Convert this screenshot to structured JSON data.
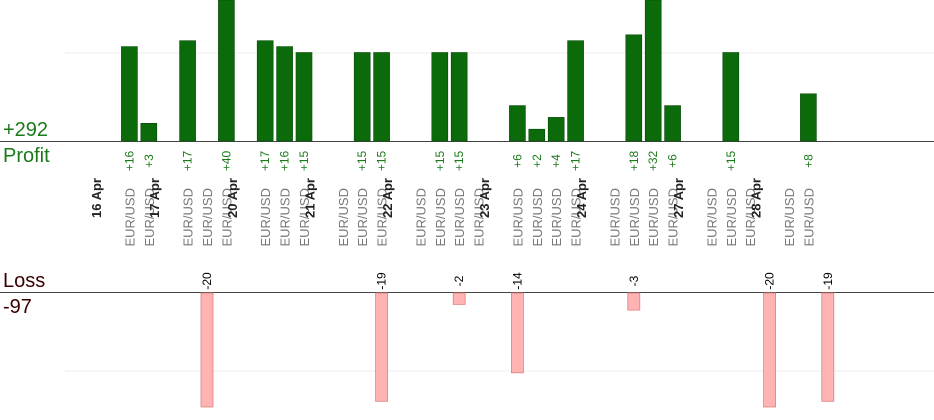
{
  "summary": {
    "profit_total": "+292",
    "profit_label": "Profit",
    "loss_label": "Loss",
    "loss_total": "-97"
  },
  "chart_data": [
    {
      "type": "bar",
      "series_label": "Profit",
      "bars": [
        {
          "day": 0,
          "pair": "EUR/USD",
          "value": 16,
          "label": "+16"
        },
        {
          "day": 0,
          "pair": "EUR/USD",
          "value": 3,
          "label": "+3"
        },
        {
          "day": 1,
          "pair": "EUR/USD",
          "value": 17,
          "label": "+17"
        },
        {
          "day": 1,
          "pair": "EUR/USD",
          "value": 0,
          "label": ""
        },
        {
          "day": 1,
          "pair": "EUR/USD",
          "value": 40,
          "label": "+40"
        },
        {
          "day": 2,
          "pair": "EUR/USD",
          "value": 17,
          "label": "+17"
        },
        {
          "day": 2,
          "pair": "EUR/USD",
          "value": 16,
          "label": "+16"
        },
        {
          "day": 2,
          "pair": "EUR/USD",
          "value": 15,
          "label": "+15"
        },
        {
          "day": 3,
          "pair": "EUR/USD",
          "value": 0,
          "label": ""
        },
        {
          "day": 3,
          "pair": "EUR/USD",
          "value": 15,
          "label": "+15"
        },
        {
          "day": 3,
          "pair": "EUR/USD",
          "value": 15,
          "label": "+15"
        },
        {
          "day": 4,
          "pair": "EUR/USD",
          "value": 0,
          "label": ""
        },
        {
          "day": 4,
          "pair": "EUR/USD",
          "value": 15,
          "label": "+15"
        },
        {
          "day": 4,
          "pair": "EUR/USD",
          "value": 15,
          "label": "+15"
        },
        {
          "day": 4,
          "pair": "EUR/USD",
          "value": 0,
          "label": ""
        },
        {
          "day": 5,
          "pair": "EUR/USD",
          "value": 6,
          "label": "+6"
        },
        {
          "day": 5,
          "pair": "EUR/USD",
          "value": 2,
          "label": "+2"
        },
        {
          "day": 5,
          "pair": "EUR/USD",
          "value": 4,
          "label": "+4"
        },
        {
          "day": 5,
          "pair": "EUR/USD",
          "value": 17,
          "label": "+17"
        },
        {
          "day": 6,
          "pair": "EUR/USD",
          "value": 0,
          "label": ""
        },
        {
          "day": 6,
          "pair": "EUR/USD",
          "value": 18,
          "label": "+18"
        },
        {
          "day": 6,
          "pair": "EUR/USD",
          "value": 32,
          "label": "+32"
        },
        {
          "day": 6,
          "pair": "EUR/USD",
          "value": 6,
          "label": "+6"
        },
        {
          "day": 7,
          "pair": "EUR/USD",
          "value": 0,
          "label": ""
        },
        {
          "day": 7,
          "pair": "EUR/USD",
          "value": 15,
          "label": "+15"
        },
        {
          "day": 7,
          "pair": "EUR/USD",
          "value": 0,
          "label": ""
        },
        {
          "day": 8,
          "pair": "EUR/USD",
          "value": 0,
          "label": ""
        },
        {
          "day": 8,
          "pair": "EUR/USD",
          "value": 8,
          "label": "+8"
        }
      ],
      "losses": [
        {
          "slot": 5,
          "value": -20,
          "label": "-20"
        },
        {
          "slot": 14,
          "value": -19,
          "label": "-19"
        },
        {
          "slot": 18,
          "value": -2,
          "label": "-2"
        },
        {
          "slot": 21,
          "value": -14,
          "label": "-14"
        },
        {
          "slot": 27,
          "value": -3,
          "label": "-3"
        },
        {
          "slot": 34,
          "value": -20,
          "label": "-20"
        },
        {
          "slot": 37,
          "value": -19,
          "label": "-19"
        }
      ],
      "day_labels": [
        "16 Apr",
        "17 Apr",
        "20 Apr",
        "21 Apr",
        "22 Apr",
        "23 Apr",
        "24 Apr",
        "27 Apr",
        "28 Apr"
      ],
      "grid": true,
      "colors": {
        "profit_bar": "#0b6b0b",
        "profit_bar_edge": "#064a06",
        "profit_text": "#1a7a1a",
        "loss_bar": "#ffb3b3",
        "loss_bar_edge": "#e08080",
        "loss_text": "#000000",
        "axis": "#444444",
        "grid": "#eeeeee",
        "pair_text": "#777777",
        "date_text": "#222222",
        "profit_summary": "#1a7a1a",
        "loss_summary": "#3a0000"
      }
    }
  ]
}
